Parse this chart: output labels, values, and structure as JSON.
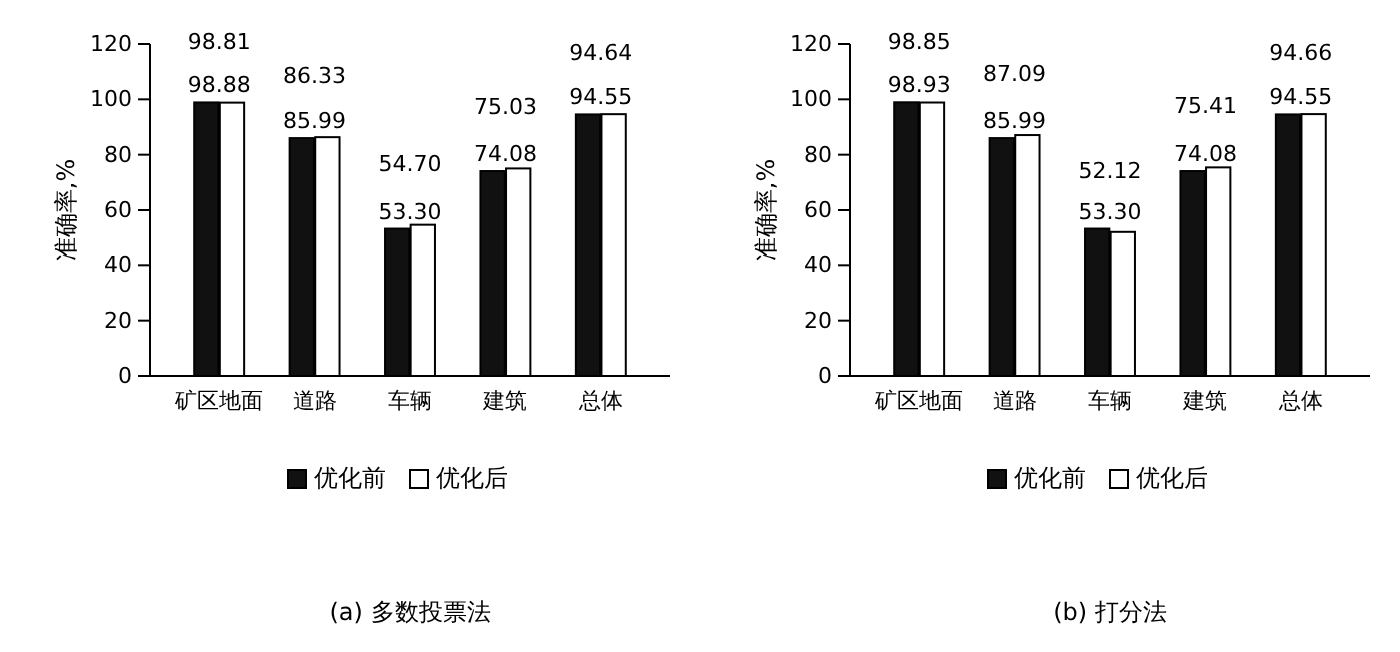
{
  "chart_data": [
    {
      "type": "bar",
      "title": "(a) 多数投票法",
      "ylabel": "准确率,%",
      "categories": [
        "矿区地面",
        "道路",
        "车辆",
        "建筑",
        "总体"
      ],
      "series": [
        {
          "name": "优化前",
          "color": "#111111",
          "values": [
            98.88,
            85.99,
            53.3,
            74.08,
            94.55
          ],
          "value_labels": [
            "98.88",
            "85.99",
            "53.30",
            "74.08",
            "94.55"
          ]
        },
        {
          "name": "优化后",
          "color": "#ffffff",
          "values": [
            98.81,
            86.33,
            54.7,
            75.03,
            94.64
          ],
          "value_labels": [
            "98.81",
            "86.33",
            "54.70",
            "75.03",
            "94.64"
          ]
        }
      ],
      "ylim": [
        0,
        120
      ],
      "yticks": [
        0,
        20,
        40,
        60,
        80,
        100,
        120
      ],
      "legend": "bottom"
    },
    {
      "type": "bar",
      "title": "(b) 打分法",
      "ylabel": "准确率,%",
      "categories": [
        "矿区地面",
        "道路",
        "车辆",
        "建筑",
        "总体"
      ],
      "series": [
        {
          "name": "优化前",
          "color": "#111111",
          "values": [
            98.93,
            85.99,
            53.3,
            74.08,
            94.55
          ],
          "value_labels": [
            "98.93",
            "85.99",
            "53.30",
            "74.08",
            "94.55"
          ]
        },
        {
          "name": "优化后",
          "color": "#ffffff",
          "values": [
            98.85,
            87.09,
            52.12,
            75.41,
            94.66
          ],
          "value_labels": [
            "98.85",
            "87.09",
            "52.12",
            "75.41",
            "94.66"
          ]
        }
      ],
      "ylim": [
        0,
        120
      ],
      "yticks": [
        0,
        20,
        40,
        60,
        80,
        100,
        120
      ],
      "legend": "bottom"
    }
  ]
}
